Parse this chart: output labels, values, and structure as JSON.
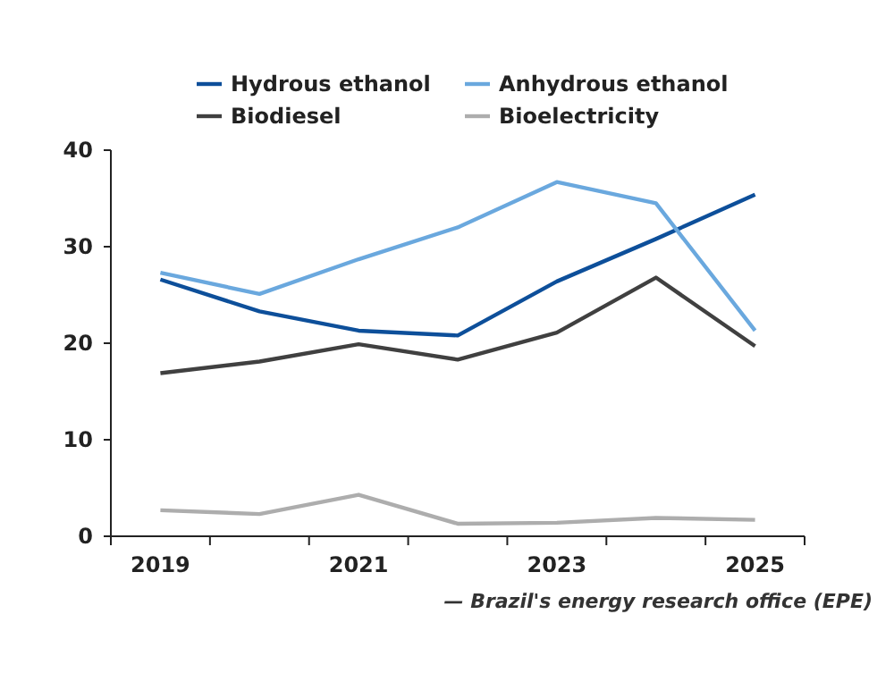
{
  "chart_data": {
    "type": "line",
    "categories": [
      "2019",
      null,
      "2021",
      null,
      "2023",
      null,
      "2025"
    ],
    "series": [
      {
        "name": "Hydrous ethanol",
        "color": "#0d4f9a",
        "values": [
          26.6,
          23.3,
          21.3,
          20.8,
          26.4,
          30.8,
          35.4
        ]
      },
      {
        "name": "Anhydrous ethanol",
        "color": "#6aa8de",
        "values": [
          27.3,
          25.1,
          28.7,
          32.0,
          36.7,
          34.5,
          21.3
        ]
      },
      {
        "name": "Biodiesel",
        "color": "#404040",
        "values": [
          16.9,
          18.1,
          19.9,
          18.3,
          21.1,
          26.8,
          19.7
        ]
      },
      {
        "name": "Bioelectricity",
        "color": "#adadad",
        "values": [
          2.7,
          2.3,
          4.3,
          1.3,
          1.4,
          1.9,
          1.7
        ]
      }
    ],
    "ylim": [
      0,
      40
    ],
    "yticks": [
      0,
      10,
      20,
      30,
      40
    ],
    "grid": false,
    "legend": "top",
    "marker": "none",
    "annotations": [
      "— Brazil's energy research office (EPE)"
    ]
  }
}
